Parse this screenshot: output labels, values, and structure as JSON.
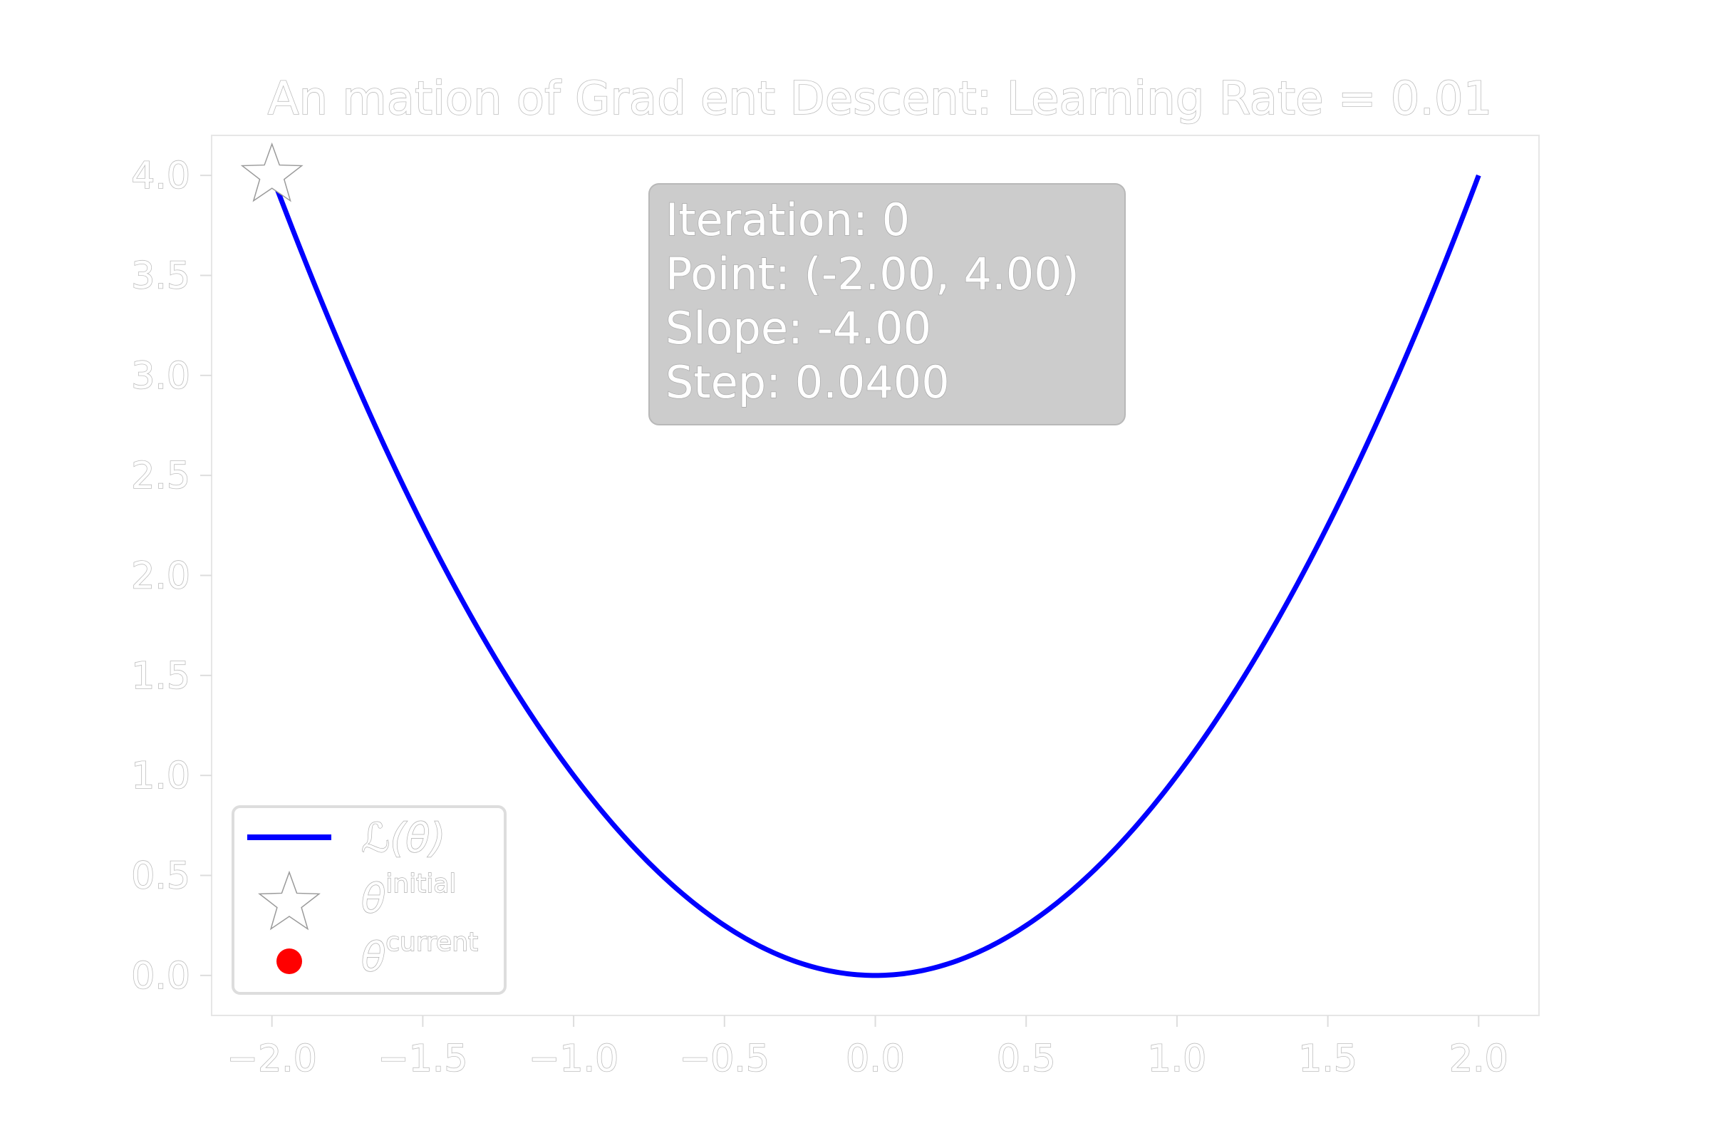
{
  "chart_data": {
    "type": "line",
    "title": "An mation of Grad ent Descent: Learning Rate = 0.01",
    "xlabel": "",
    "ylabel": "",
    "xlim": [
      -2.2,
      2.2
    ],
    "ylim": [
      -0.2,
      4.2
    ],
    "x_ticks": [
      "−2.0",
      "−1.5",
      "−1.0",
      "−0.5",
      "0.0",
      "0.5",
      "1.0",
      "1.5",
      "2.0"
    ],
    "y_ticks": [
      "0.0",
      "0.5",
      "1.0",
      "1.5",
      "2.0",
      "2.5",
      "3.0",
      "3.5",
      "4.0"
    ],
    "series": [
      {
        "name": "ℒ(θ)",
        "function": "x^2",
        "x": [
          -2.0,
          -1.75,
          -1.5,
          -1.25,
          -1.0,
          -0.75,
          -0.5,
          -0.25,
          0.0,
          0.25,
          0.5,
          0.75,
          1.0,
          1.25,
          1.5,
          1.75,
          2.0
        ],
        "y": [
          4.0,
          3.0625,
          2.25,
          1.5625,
          1.0,
          0.5625,
          0.25,
          0.0625,
          0.0,
          0.0625,
          0.25,
          0.5625,
          1.0,
          1.5625,
          2.25,
          3.0625,
          4.0
        ],
        "color": "#0000ff"
      }
    ],
    "markers": [
      {
        "name": "θ^initial",
        "x": -2.0,
        "y": 4.0,
        "shape": "star",
        "color": "#ffffff"
      },
      {
        "name": "θ^current",
        "x": -2.0,
        "y": 4.0,
        "shape": "circle",
        "color": "#ff0000"
      }
    ],
    "info_box": {
      "lines": [
        "Iteration: 0",
        "Point: (-2.00, 4.00)",
        "Slope: -4.00",
        "Step: 0.0400"
      ],
      "background": "#cccccc"
    },
    "legend": {
      "placement": "lower-left",
      "entries": [
        {
          "label_main": "ℒ(θ)",
          "label_sup": ""
        },
        {
          "label_main": "θ",
          "label_sup": "initial"
        },
        {
          "label_main": "θ",
          "label_sup": "current"
        }
      ]
    },
    "grid": false
  }
}
